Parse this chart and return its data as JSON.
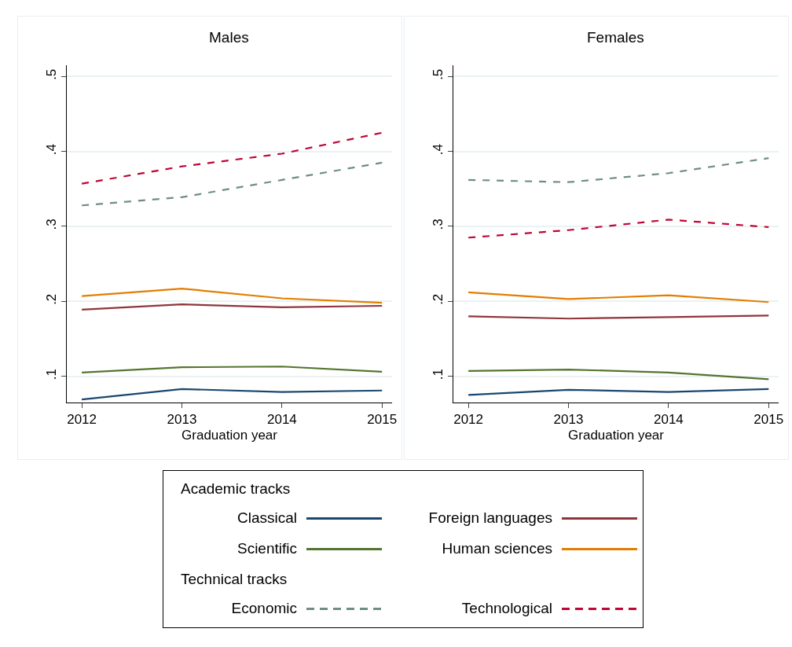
{
  "chart_data": [
    {
      "type": "line",
      "title": "Males",
      "xlabel": "Graduation year",
      "x": [
        2012,
        2013,
        2014,
        2015
      ],
      "xlim": [
        2011.85,
        2015.1
      ],
      "xticks": [
        2012,
        2013,
        2014,
        2015
      ],
      "ylim": [
        0.065,
        0.515
      ],
      "yticks": [
        {
          "value": 0.1,
          "label": ".1"
        },
        {
          "value": 0.2,
          "label": ".2"
        },
        {
          "value": 0.3,
          "label": ".3"
        },
        {
          "value": 0.4,
          "label": ".4"
        },
        {
          "value": 0.5,
          "label": ".5"
        }
      ],
      "grid": "y",
      "legend": "bottom",
      "legend_title": [
        "Academic tracks",
        "Technical tracks"
      ],
      "series": [
        {
          "name": "Classical",
          "color": "#1a476f",
          "line_style": "solid",
          "values": [
            0.069,
            0.083,
            0.079,
            0.081
          ]
        },
        {
          "name": "Foreign languages",
          "color": "#90353b",
          "line_style": "solid",
          "values": [
            0.189,
            0.196,
            0.192,
            0.194
          ]
        },
        {
          "name": "Scientific",
          "color": "#55752f",
          "line_style": "solid",
          "values": [
            0.105,
            0.112,
            0.113,
            0.106
          ]
        },
        {
          "name": "Human sciences",
          "color": "#e37e00",
          "line_style": "solid",
          "values": [
            0.207,
            0.217,
            0.204,
            0.198
          ]
        },
        {
          "name": "Economic",
          "color": "#6e8e84",
          "line_style": "dashed",
          "values": [
            0.328,
            0.339,
            0.362,
            0.385
          ]
        },
        {
          "name": "Technological",
          "color": "#c10534",
          "line_style": "dashed",
          "values": [
            0.357,
            0.38,
            0.397,
            0.425
          ]
        }
      ]
    },
    {
      "type": "line",
      "title": "Females",
      "xlabel": "Graduation year",
      "x": [
        2012,
        2013,
        2014,
        2015
      ],
      "xlim": [
        2011.85,
        2015.1
      ],
      "xticks": [
        2012,
        2013,
        2014,
        2015
      ],
      "ylim": [
        0.065,
        0.515
      ],
      "yticks": [
        {
          "value": 0.1,
          "label": ".1"
        },
        {
          "value": 0.2,
          "label": ".2"
        },
        {
          "value": 0.3,
          "label": ".3"
        },
        {
          "value": 0.4,
          "label": ".4"
        },
        {
          "value": 0.5,
          "label": ".5"
        }
      ],
      "grid": "y",
      "series": [
        {
          "color": "#1a476f",
          "line_style": "solid",
          "values": [
            0.075,
            0.082,
            0.079,
            0.083
          ]
        },
        {
          "color": "#90353b",
          "line_style": "solid",
          "values": [
            0.18,
            0.177,
            0.179,
            0.181
          ]
        },
        {
          "color": "#55752f",
          "line_style": "solid",
          "values": [
            0.107,
            0.109,
            0.105,
            0.096
          ]
        },
        {
          "color": "#e37e00",
          "line_style": "solid",
          "values": [
            0.212,
            0.203,
            0.208,
            0.199
          ]
        },
        {
          "color": "#6e8e84",
          "line_style": "dashed",
          "values": [
            0.362,
            0.359,
            0.371,
            0.391
          ]
        },
        {
          "color": "#c10534",
          "line_style": "dashed",
          "values": [
            0.285,
            0.295,
            0.309,
            0.299
          ]
        }
      ]
    }
  ]
}
